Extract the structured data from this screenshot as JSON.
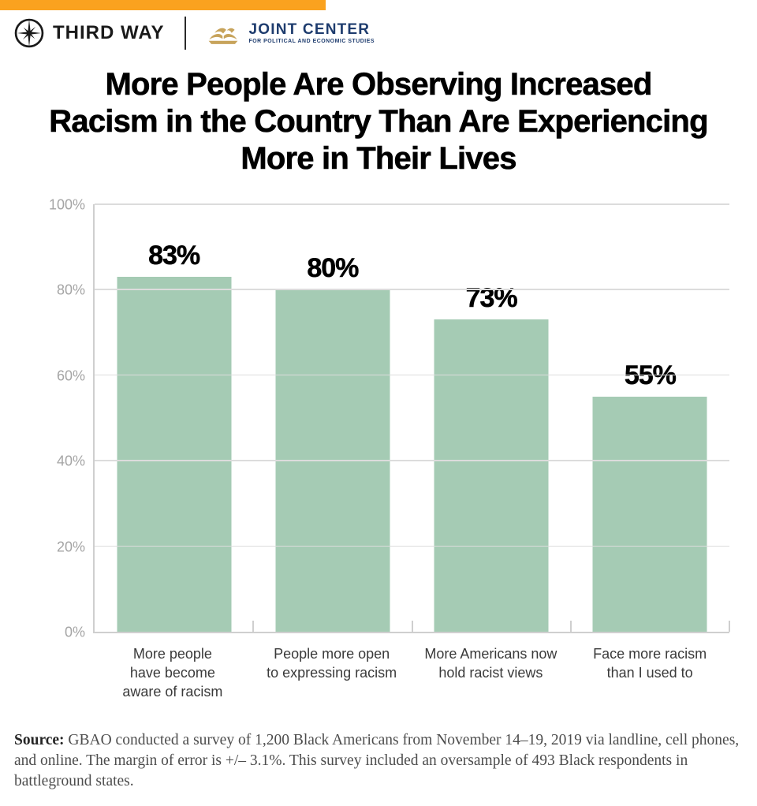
{
  "header": {
    "accent_bar_color": "#FAA21F",
    "third_way_label": "THIRD WAY",
    "joint_center_name": "JOINT CENTER",
    "joint_center_tagline": "FOR POLITICAL AND ECONOMIC STUDIES",
    "joint_center_navy": "#1E3C6E",
    "joint_center_gold": "#C7A35B"
  },
  "title_lines": [
    "More People Are Observing Increased",
    "Racism in the Country Than Are Experiencing",
    "More in Their Lives"
  ],
  "chart_data": {
    "type": "bar",
    "title": "More People Are Observing Increased Racism in the Country Than Are Experiencing More in Their Lives",
    "categories": [
      "More people\nhave become\naware of racism",
      "People more open\nto expressing racism",
      "More Americans now\nhold racist views",
      "Face more racism\nthan I used to"
    ],
    "values": [
      83,
      80,
      73,
      55
    ],
    "value_labels": [
      "83%",
      "80%",
      "73%",
      "55%"
    ],
    "yticks": [
      0,
      20,
      40,
      60,
      80,
      100
    ],
    "ytick_labels": [
      "0%",
      "20%",
      "40%",
      "60%",
      "80%",
      "100%"
    ],
    "ylim": [
      0,
      100
    ],
    "grid": true,
    "legend": false,
    "xlabel": "",
    "ylabel": "",
    "bar_color": "#A5CBB4",
    "gridline_color": "#DCDCDC",
    "axis_color": "#CFCFCF",
    "ytick_label_color": "#A5A5A5",
    "xtick_label_color": "#3A3A3A"
  },
  "source": {
    "label": "Source:",
    "text": "GBAO conducted a survey of 1,200 Black Americans from November 14–19, 2019 via landline, cell phones, and online. The margin of error is +/– 3.1%. This survey included an oversample of 493 Black respondents in battleground states."
  }
}
